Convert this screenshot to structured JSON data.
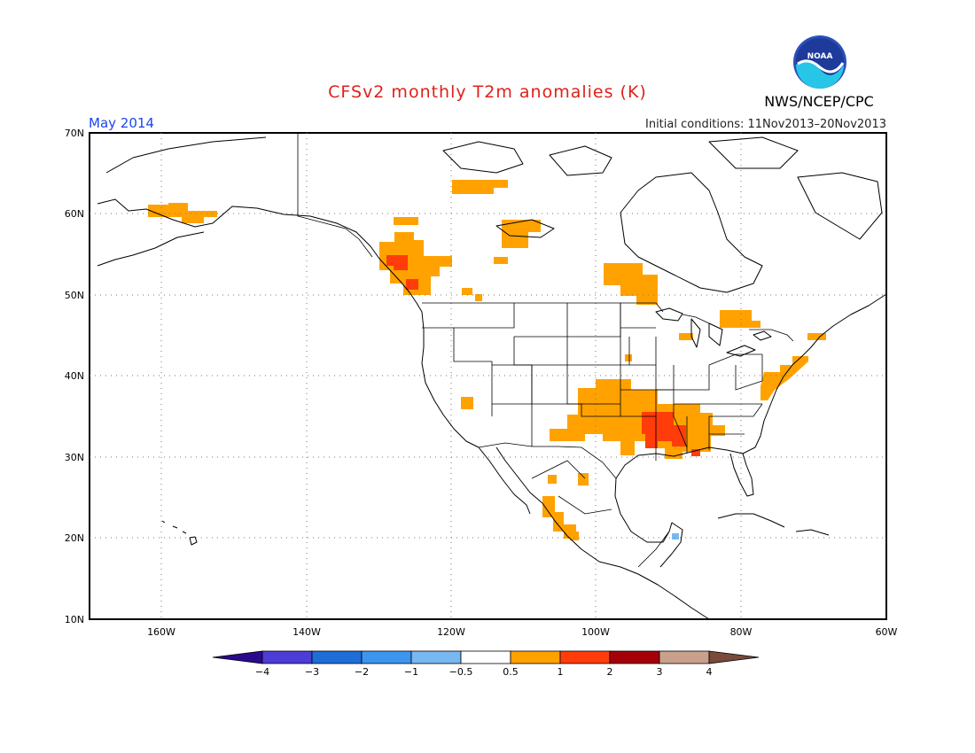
{
  "title": "CFSv2 monthly T2m anomalies (K)",
  "target_month": "May 2014",
  "initial_conditions": "Initial conditions: 11Nov2013–20Nov2013",
  "agency": "NWS/NCEP/CPC",
  "logo_text": "NOAA",
  "colors": {
    "title": "#e0201a",
    "month": "#1c46ee",
    "warm_1": "#ffa200",
    "warm_2": "#ff3c0a",
    "cool_1": "#78b8f0",
    "grid": "#7a7a7a"
  },
  "map": {
    "lon_range": [
      -170,
      -60
    ],
    "lat_range": [
      10,
      70
    ],
    "lon_ticks": [
      "160W",
      "140W",
      "120W",
      "100W",
      "80W",
      "60W"
    ],
    "lat_ticks": [
      "70N",
      "60N",
      "50N",
      "40N",
      "30N",
      "20N",
      "10N"
    ]
  },
  "colorbar": {
    "labels": [
      "−4",
      "−3",
      "−2",
      "−1",
      "−0.5",
      "0.5",
      "1",
      "2",
      "3",
      "4"
    ],
    "bins": [
      {
        "range": "< -4",
        "color": "#2a0a8c"
      },
      {
        "range": "-4 to -3",
        "color": "#4d3cd6"
      },
      {
        "range": "-3 to -2",
        "color": "#1f6ed8"
      },
      {
        "range": "-2 to -1",
        "color": "#3c96ef"
      },
      {
        "range": "-1 to -0.5",
        "color": "#78b8f0"
      },
      {
        "range": "-0.5 to 0.5",
        "color": "#ffffff"
      },
      {
        "range": "0.5 to 1",
        "color": "#ffa200"
      },
      {
        "range": "1 to 2",
        "color": "#ff3c0a"
      },
      {
        "range": "2 to 3",
        "color": "#a5000a"
      },
      {
        "range": "3 to 4",
        "color": "#c8a08c"
      },
      {
        "range": "> 4",
        "color": "#7a4b3c"
      }
    ]
  },
  "anomaly_regions": [
    {
      "region": "western Alaska",
      "category": "0.5 to 1"
    },
    {
      "region": "Yukon / northwestern Canada",
      "category": "0.5 to 1"
    },
    {
      "region": "northern British Columbia",
      "category": "0.5 to 1"
    },
    {
      "region": "central British Columbia",
      "category": "1 to 2"
    },
    {
      "region": "Northwest Territories",
      "category": "0.5 to 1"
    },
    {
      "region": "northern Ontario / Hudson Bay",
      "category": "0.5 to 1"
    },
    {
      "region": "southern Quebec",
      "category": "0.5 to 1"
    },
    {
      "region": "Maine / Nova Scotia",
      "category": "0.5 to 1"
    },
    {
      "region": "US mid-Atlantic coast",
      "category": "0.5 to 1"
    },
    {
      "region": "southern California / Nevada",
      "category": "0.5 to 1"
    },
    {
      "region": "US southern plains and southeast",
      "category": "0.5 to 1"
    },
    {
      "region": "Arkansas / Louisiana / Mississippi",
      "category": "1 to 2"
    },
    {
      "region": "northwestern Mexico",
      "category": "0.5 to 1"
    },
    {
      "region": "Yucatan",
      "category": "-1 to -0.5"
    }
  ]
}
